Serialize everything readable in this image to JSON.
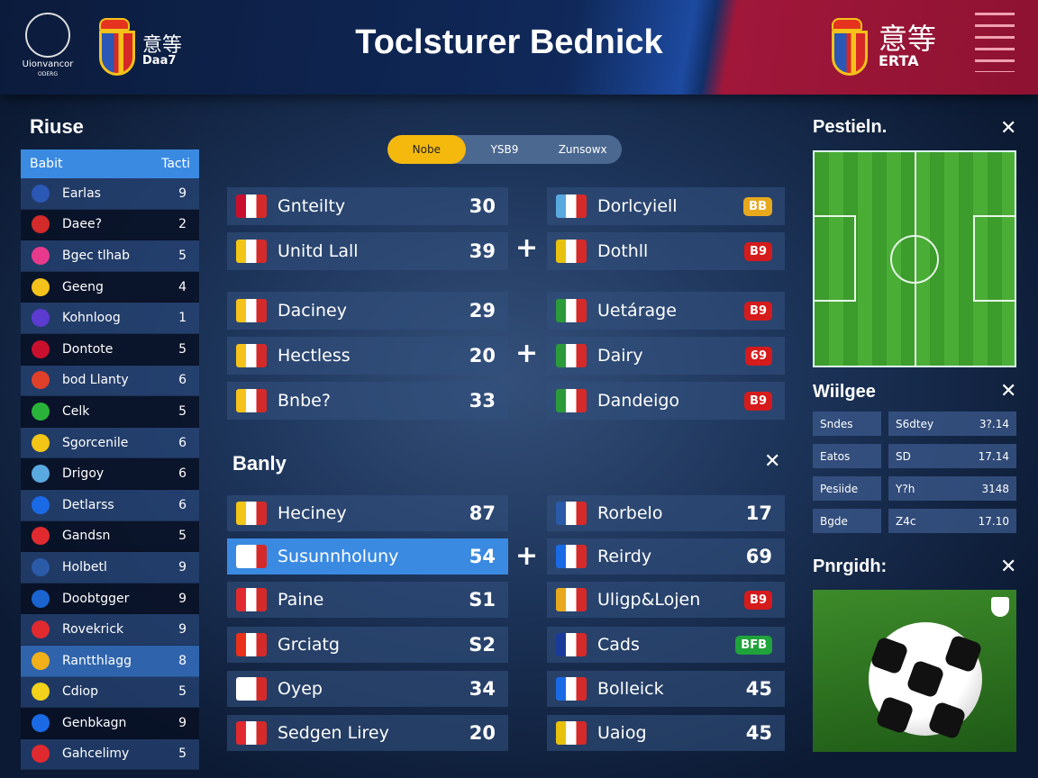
{
  "header": {
    "title": "Toclsturer Bednick",
    "league_logo_text": "Uionvancor",
    "league_sub": "ODERG",
    "left_club": {
      "cjk": "意等",
      "sub": "Daa7"
    },
    "right_club": {
      "cjk": "意等",
      "sub": "ERTA"
    },
    "menu_icon": "hamburger-icon"
  },
  "sidebar": {
    "title": "Riuse",
    "col1": "Babit",
    "col2": "Tacti",
    "rows": [
      {
        "name": "Earlas",
        "value": "9",
        "color": "#2b57b5"
      },
      {
        "name": "Daee?",
        "value": "2",
        "color": "#d52a2a"
      },
      {
        "name": "Bgec tlhab",
        "value": "5",
        "color": "#e83a8c"
      },
      {
        "name": "Geeng",
        "value": "4",
        "color": "#f4c21a"
      },
      {
        "name": "Kohnloog",
        "value": "1",
        "color": "#5b3bd0"
      },
      {
        "name": "Dontote",
        "value": "5",
        "color": "#c8102e"
      },
      {
        "name": "bod Llanty",
        "value": "6",
        "color": "#e0402a"
      },
      {
        "name": "Celk",
        "value": "5",
        "color": "#2ab33a"
      },
      {
        "name": "Sgorcenile",
        "value": "6",
        "color": "#f2c516"
      },
      {
        "name": "Drigoy",
        "value": "6",
        "color": "#5aa8e0"
      },
      {
        "name": "Detlarss",
        "value": "6",
        "color": "#1a6ae6"
      },
      {
        "name": "Gandsn",
        "value": "5",
        "color": "#e02a30"
      },
      {
        "name": "Holbetl",
        "value": "9",
        "color": "#2a5aa8"
      },
      {
        "name": "Doobtgger",
        "value": "9",
        "color": "#1a64d0"
      },
      {
        "name": "Rovekrick",
        "value": "9",
        "color": "#e02a30"
      },
      {
        "name": "Rantthlagg",
        "value": "8",
        "color": "#f2b01a",
        "selected": true
      },
      {
        "name": "Cdiop",
        "value": "5",
        "color": "#f2d21a"
      },
      {
        "name": "Genbkagn",
        "value": "9",
        "color": "#1a6ae6"
      },
      {
        "name": "Gahcelimy",
        "value": "5",
        "color": "#e02a30"
      }
    ]
  },
  "tabs": [
    {
      "label": "Nobe",
      "active": true
    },
    {
      "label": "YSB9"
    },
    {
      "label": "Zunsowx"
    }
  ],
  "matches_top": {
    "left": [
      {
        "name": "Gnteilty",
        "value": "30",
        "flag": "#c8102e"
      },
      {
        "name": "Unitd Lall",
        "value": "39",
        "flag": "#f2c516"
      },
      {
        "name": "Daciney",
        "value": "29",
        "flag": "#f4c21a"
      },
      {
        "name": "Hectless",
        "value": "20",
        "flag": "#f4c21a"
      },
      {
        "name": "Bnbe?",
        "value": "33",
        "flag": "#f4c21a"
      }
    ],
    "right": [
      {
        "name": "Dorlcyiell",
        "badge": "BB",
        "badge_color": "#e8a81e",
        "flag": "#5aa8e0"
      },
      {
        "name": "Dothll",
        "badge": "B9",
        "badge_color": "#d51b1b",
        "flag": "#e8c10e"
      },
      {
        "name": "Uetárage",
        "badge": "B9",
        "badge_color": "#d51b1b",
        "flag": "#2a9a3a"
      },
      {
        "name": "Dairy",
        "badge": "69",
        "badge_color": "#d51b1b",
        "flag": "#2a9a3a"
      },
      {
        "name": "Dandeigo",
        "badge": "B9",
        "badge_color": "#d51b1b",
        "flag": "#2a9a3a"
      }
    ]
  },
  "section2": {
    "title": "Banly",
    "left": [
      {
        "name": "Heciney",
        "value": "87",
        "flag": "#f2c516"
      },
      {
        "name": "Susunnholuny",
        "value": "54",
        "flag": "#ffffff",
        "selected": true
      },
      {
        "name": "Paine",
        "value": "S1",
        "flag": "#e02a30"
      },
      {
        "name": "Grciatg",
        "value": "S2",
        "flag": "#e8301a"
      },
      {
        "name": "Oyep",
        "value": "34",
        "flag": "#ffffff"
      },
      {
        "name": "Sedgen Lirey",
        "value": "20",
        "flag": "#e02a30"
      }
    ],
    "right": [
      {
        "name": "Rorbelo",
        "value": "17",
        "flag": "#2a5aa8"
      },
      {
        "name": "Reirdy",
        "value": "69",
        "flag": "#1a6ae6"
      },
      {
        "name": "Uligp&Lojen",
        "badge": "B9",
        "badge_color": "#d51b1b",
        "flag": "#e8a81e"
      },
      {
        "name": "Cads",
        "badge": "BFB",
        "badge_color": "#1fa33a",
        "flag": "#1a3a9a"
      },
      {
        "name": "Bolleick",
        "value": "45",
        "flag": "#1a6ae6"
      },
      {
        "name": "Uaiog",
        "value": "45",
        "flag": "#e8c10e"
      }
    ]
  },
  "right_panel": {
    "pitch_title": "Pestieln.",
    "widget_title": "Wiilgee",
    "widget_rows": [
      [
        "Sndes",
        "S6dtey",
        "3?.14"
      ],
      [
        "Eatos",
        "SD",
        "17.14"
      ],
      [
        "Pesiide",
        "Y?h",
        "3148"
      ],
      [
        "Bgde",
        "Z4c",
        "17.10"
      ]
    ],
    "photo_title": "Pnrgidh:"
  },
  "colors": {
    "accent": "#3a8ae2",
    "tab_active": "#f5b90e",
    "header_red": "#9a1535"
  }
}
